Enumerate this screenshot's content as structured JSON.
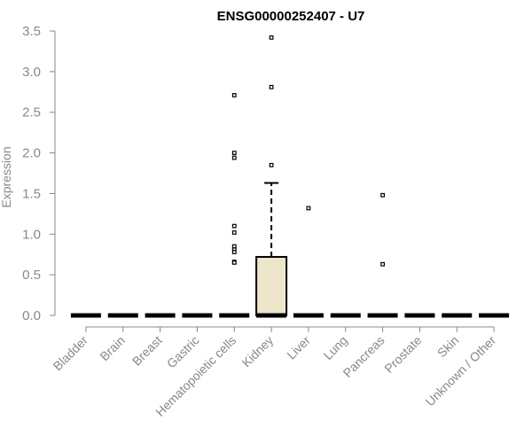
{
  "chart_data": {
    "type": "box",
    "title": "ENSG00000252407 - U7",
    "xlabel": "",
    "ylabel": "Expression",
    "ylim": [
      0,
      3.5
    ],
    "yticks": [
      "0.0",
      "0.5",
      "1.0",
      "1.5",
      "2.0",
      "2.5",
      "3.0",
      "3.5"
    ],
    "categories": [
      "Bladder",
      "Brain",
      "Breast",
      "Gastric",
      "Hematopoietic cells",
      "Kidney",
      "Liver",
      "Lung",
      "Pancreas",
      "Prostate",
      "Skin",
      "Unknown / Other"
    ],
    "boxes": [
      {
        "category": "Bladder",
        "q1": 0,
        "median": 0,
        "q3": 0,
        "whisker_low": 0,
        "whisker_high": 0,
        "outliers": []
      },
      {
        "category": "Brain",
        "q1": 0,
        "median": 0,
        "q3": 0,
        "whisker_low": 0,
        "whisker_high": 0,
        "outliers": []
      },
      {
        "category": "Breast",
        "q1": 0,
        "median": 0,
        "q3": 0,
        "whisker_low": 0,
        "whisker_high": 0,
        "outliers": []
      },
      {
        "category": "Gastric",
        "q1": 0,
        "median": 0,
        "q3": 0,
        "whisker_low": 0,
        "whisker_high": 0,
        "outliers": []
      },
      {
        "category": "Hematopoietic cells",
        "q1": 0,
        "median": 0,
        "q3": 0,
        "whisker_low": 0,
        "whisker_high": 0,
        "outliers": [
          2.71,
          2.0,
          1.94,
          1.1,
          1.02,
          0.85,
          0.81,
          0.78,
          0.66,
          0.65
        ]
      },
      {
        "category": "Kidney",
        "q1": 0,
        "median": 0,
        "q3": 0.72,
        "whisker_low": 0,
        "whisker_high": 1.63,
        "outliers": [
          3.42,
          2.81,
          1.85
        ]
      },
      {
        "category": "Liver",
        "q1": 0,
        "median": 0,
        "q3": 0,
        "whisker_low": 0,
        "whisker_high": 0,
        "outliers": [
          1.32
        ]
      },
      {
        "category": "Lung",
        "q1": 0,
        "median": 0,
        "q3": 0,
        "whisker_low": 0,
        "whisker_high": 0,
        "outliers": []
      },
      {
        "category": "Pancreas",
        "q1": 0,
        "median": 0,
        "q3": 0,
        "whisker_low": 0,
        "whisker_high": 0,
        "outliers": [
          1.48,
          0.63
        ]
      },
      {
        "category": "Prostate",
        "q1": 0,
        "median": 0,
        "q3": 0,
        "whisker_low": 0,
        "whisker_high": 0,
        "outliers": []
      },
      {
        "category": "Skin",
        "q1": 0,
        "median": 0,
        "q3": 0,
        "whisker_low": 0,
        "whisker_high": 0,
        "outliers": []
      },
      {
        "category": "Unknown / Other",
        "q1": 0,
        "median": 0,
        "q3": 0,
        "whisker_low": 0,
        "whisker_high": 0,
        "outliers": []
      }
    ],
    "grid": false,
    "colors": {
      "box_fill": "#ede6cb",
      "stroke": "#000000",
      "axis": "#888888",
      "title": "#000000"
    }
  }
}
